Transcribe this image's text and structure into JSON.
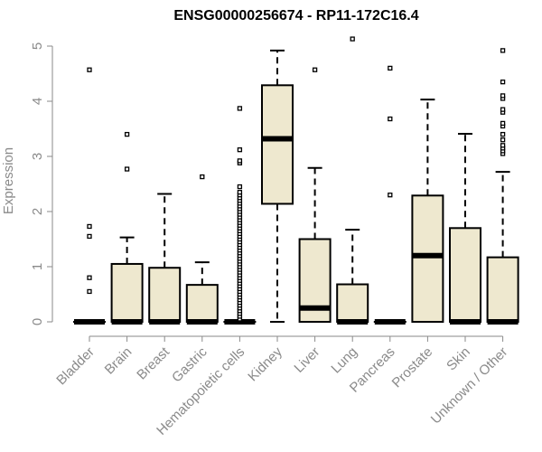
{
  "chart_data": {
    "type": "boxplot",
    "title": "ENSG00000256674 - RP11-172C16.4",
    "ylabel": "Expression",
    "xlabel": "",
    "ylim": [
      0,
      5.25
    ],
    "yticks": [
      "0",
      "1",
      "2",
      "3",
      "4",
      "5"
    ],
    "grid": false,
    "box_color": "#EEE8CF",
    "categories": [
      "Bladder",
      "Brain",
      "Breast",
      "Gastric",
      "Hematopoietic cells",
      "Kidney",
      "Liver",
      "Lung",
      "Pancreas",
      "Prostate",
      "Skin",
      "Unknown / Other"
    ],
    "boxes": [
      {
        "min": 0,
        "q1": 0,
        "median": 0,
        "q3": 0,
        "max": 0,
        "outliers": [
          0.55,
          0.8,
          1.55,
          1.73,
          4.57
        ]
      },
      {
        "min": 0,
        "q1": 0,
        "median": 0,
        "q3": 1.05,
        "max": 1.53,
        "outliers": [
          2.77,
          3.4
        ]
      },
      {
        "min": 0,
        "q1": 0,
        "median": 0,
        "q3": 0.98,
        "max": 2.32,
        "outliers": []
      },
      {
        "min": 0,
        "q1": 0,
        "median": 0,
        "q3": 0.67,
        "max": 1.08,
        "outliers": [
          2.63
        ]
      },
      {
        "min": 0,
        "q1": 0,
        "median": 0,
        "q3": 0,
        "max": 0,
        "outliers": [
          0.05,
          0.1,
          0.15,
          0.2,
          0.25,
          0.3,
          0.35,
          0.4,
          0.45,
          0.5,
          0.55,
          0.6,
          0.65,
          0.7,
          0.75,
          0.8,
          0.85,
          0.9,
          0.95,
          1.0,
          1.05,
          1.1,
          1.15,
          1.2,
          1.25,
          1.3,
          1.35,
          1.4,
          1.45,
          1.5,
          1.55,
          1.6,
          1.65,
          1.7,
          1.75,
          1.8,
          1.85,
          1.9,
          1.95,
          2.0,
          2.05,
          2.1,
          2.15,
          2.2,
          2.25,
          2.3,
          2.35,
          2.45,
          2.88,
          2.92,
          3.12,
          3.87
        ]
      },
      {
        "min": 0,
        "q1": 2.14,
        "median": 3.32,
        "q3": 4.29,
        "max": 4.92,
        "outliers": []
      },
      {
        "min": 0,
        "q1": 0,
        "median": 0.25,
        "q3": 1.5,
        "max": 2.79,
        "outliers": [
          4.57
        ]
      },
      {
        "min": 0,
        "q1": 0,
        "median": 0,
        "q3": 0.68,
        "max": 1.67,
        "outliers": [
          5.13
        ]
      },
      {
        "min": 0,
        "q1": 0,
        "median": 0,
        "q3": 0,
        "max": 0,
        "outliers": [
          2.3,
          3.68,
          4.6
        ]
      },
      {
        "min": 0,
        "q1": 0,
        "median": 1.2,
        "q3": 2.29,
        "max": 4.03,
        "outliers": []
      },
      {
        "min": 0,
        "q1": 0,
        "median": 0,
        "q3": 1.7,
        "max": 3.41,
        "outliers": []
      },
      {
        "min": 0,
        "q1": 0,
        "median": 0,
        "q3": 1.17,
        "max": 2.72,
        "outliers": [
          3.05,
          3.1,
          3.15,
          3.2,
          3.3,
          3.4,
          3.55,
          3.6,
          3.8,
          3.85,
          4.05,
          4.1,
          4.35,
          4.92
        ]
      }
    ]
  }
}
